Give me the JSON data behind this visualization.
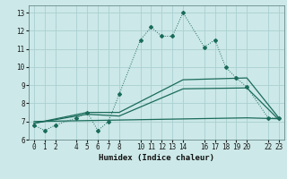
{
  "xlabel": "Humidex (Indice chaleur)",
  "xlim": [
    -0.5,
    23.5
  ],
  "ylim": [
    6,
    13.4
  ],
  "yticks": [
    6,
    7,
    8,
    9,
    10,
    11,
    12,
    13
  ],
  "xticks": [
    0,
    1,
    2,
    4,
    5,
    6,
    7,
    8,
    10,
    11,
    12,
    13,
    14,
    16,
    17,
    18,
    19,
    20,
    22,
    23
  ],
  "bg_color": "#cce8e8",
  "grid_color": "#aad0d0",
  "line_color": "#1a6b5a",
  "line1_x": [
    0,
    1,
    2,
    4,
    5,
    6,
    7,
    8,
    10,
    11,
    12,
    13,
    14,
    16,
    17,
    18,
    19,
    20,
    22,
    23
  ],
  "line1_y": [
    6.8,
    6.5,
    6.8,
    7.2,
    7.5,
    6.5,
    7.0,
    8.5,
    11.5,
    12.2,
    11.7,
    11.7,
    13.0,
    11.1,
    11.5,
    10.0,
    9.4,
    8.9,
    7.2,
    7.2
  ],
  "line2_x": [
    0,
    5,
    8,
    14,
    20,
    23
  ],
  "line2_y": [
    6.9,
    7.5,
    7.5,
    9.3,
    9.4,
    7.2
  ],
  "line3_x": [
    0,
    5,
    8,
    14,
    20,
    23
  ],
  "line3_y": [
    6.9,
    7.4,
    7.3,
    8.8,
    8.85,
    7.1
  ],
  "line4_x": [
    0,
    20,
    23
  ],
  "line4_y": [
    7.0,
    7.2,
    7.15
  ]
}
